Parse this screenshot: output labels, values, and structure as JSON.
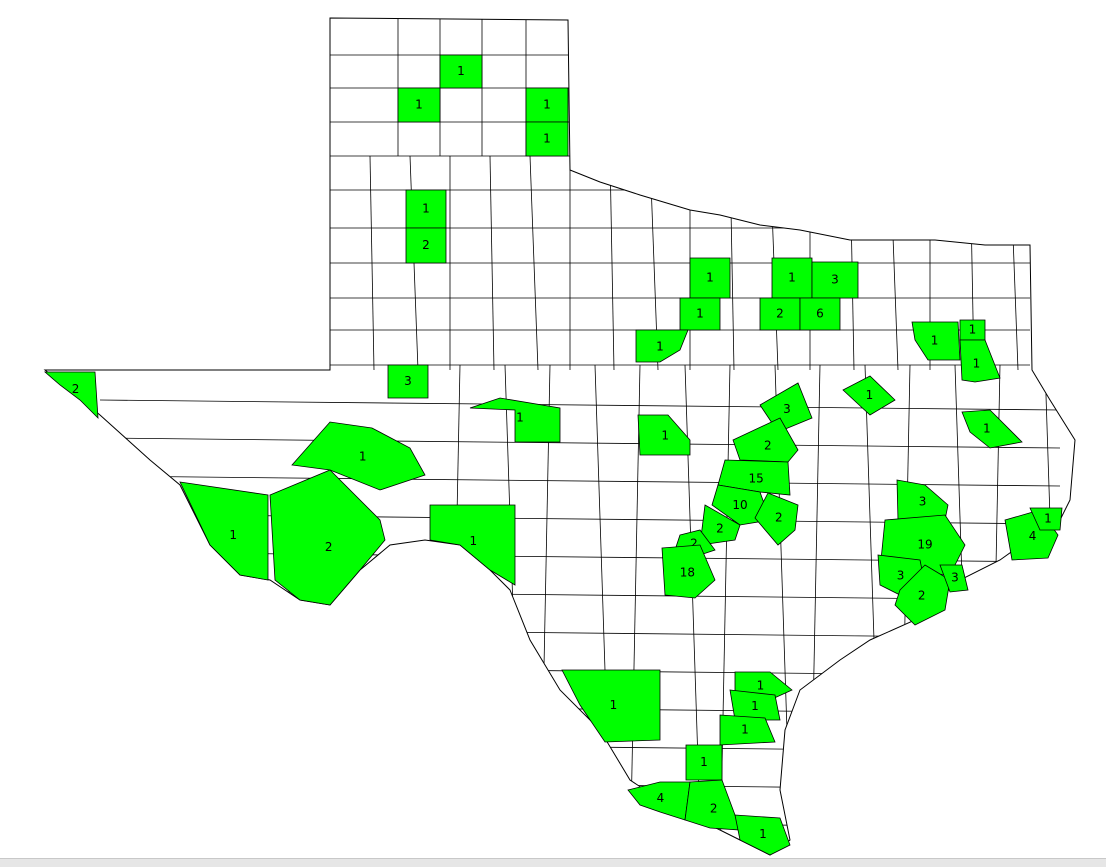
{
  "colors": {
    "highlight": "#00ff00",
    "background": "#ffffff",
    "border": "#000000"
  },
  "counties": [
    {
      "label": "1"
    },
    {
      "label": "1"
    },
    {
      "label": "1"
    },
    {
      "label": "1"
    },
    {
      "label": "1"
    },
    {
      "label": "2"
    },
    {
      "label": "1"
    },
    {
      "label": "1"
    },
    {
      "label": "3"
    },
    {
      "label": "1"
    },
    {
      "label": "2"
    },
    {
      "label": "6"
    },
    {
      "label": "1"
    },
    {
      "label": "1"
    },
    {
      "label": "1"
    },
    {
      "label": "1"
    },
    {
      "label": "2"
    },
    {
      "label": "3"
    },
    {
      "label": "1"
    },
    {
      "label": "1"
    },
    {
      "label": "3"
    },
    {
      "label": "1"
    },
    {
      "label": "1"
    },
    {
      "label": "2"
    },
    {
      "label": "15"
    },
    {
      "label": "10"
    },
    {
      "label": "2"
    },
    {
      "label": "2"
    },
    {
      "label": "2"
    },
    {
      "label": "18"
    },
    {
      "label": "3"
    },
    {
      "label": "19"
    },
    {
      "label": "3"
    },
    {
      "label": "2"
    },
    {
      "label": "3"
    },
    {
      "label": "4"
    },
    {
      "label": "1"
    },
    {
      "label": "1"
    },
    {
      "label": "1"
    },
    {
      "label": "2"
    },
    {
      "label": "1"
    },
    {
      "label": "1"
    },
    {
      "label": "1"
    },
    {
      "label": "1"
    },
    {
      "label": "1"
    },
    {
      "label": "1"
    },
    {
      "label": "4"
    },
    {
      "label": "2"
    },
    {
      "label": "1"
    }
  ]
}
